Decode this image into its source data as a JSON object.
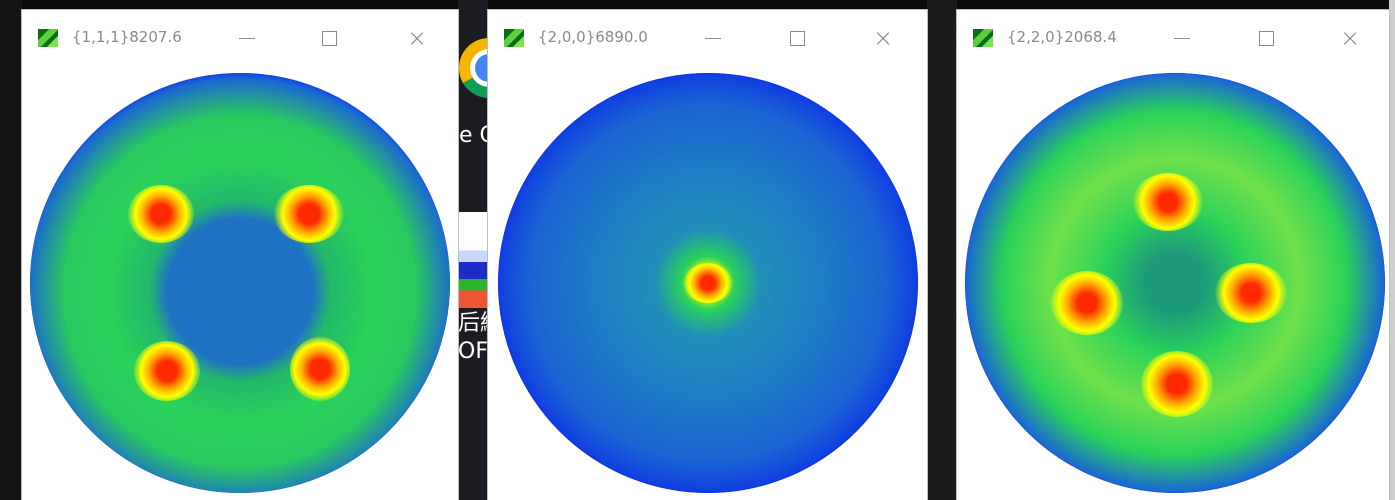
{
  "windows": [
    {
      "title": "{1,1,1}8207.6",
      "close_glyph": "×"
    },
    {
      "title": "{2,0,0}6890.0",
      "close_glyph": "×"
    },
    {
      "title": "{2,2,0}2068.4",
      "close_glyph": "×"
    }
  ],
  "desktop": {
    "chrome_label_fragment": "e C",
    "app_label_fragment_1": "后線",
    "app_label_fragment_2": "OFPI"
  },
  "colors": {
    "pole_background": "#0000ff",
    "pole_low": "#1b6bd0",
    "pole_mid": "#2bd15a",
    "pole_high": "#ffff00",
    "pole_peak": "#ff2a00"
  },
  "icons": [
    "app-icon",
    "minimize-icon",
    "maximize-icon",
    "close-icon",
    "chrome-icon"
  ]
}
